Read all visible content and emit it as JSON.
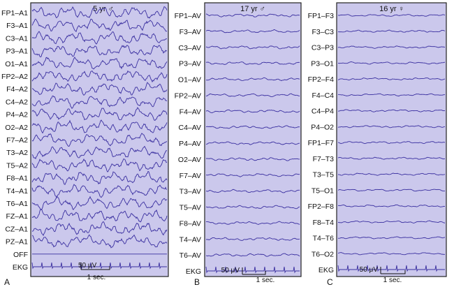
{
  "panels": [
    {
      "id": "A",
      "title": "5 yr ♂",
      "letter": "A",
      "amplitude": 1.0,
      "channels": [
        "FP1–A1",
        "F3–A1",
        "C3–A1",
        "P3–A1",
        "O1–A1",
        "FP2–A2",
        "F4–A2",
        "C4–A2",
        "P4–A2",
        "O2–A2",
        "F7–A2",
        "T3–A2",
        "T5–A2",
        "F8–A1",
        "T4–A1",
        "T6–A1",
        "FZ–A1",
        "CZ–A1",
        "PZ–A1",
        "OFF",
        "EKG"
      ],
      "scale_voltage": "50 μV",
      "scale_time": "1 sec."
    },
    {
      "id": "B",
      "title": "17 yr ♂",
      "letter": "B",
      "amplitude": 0.25,
      "channels": [
        "FP1–AV",
        "F3–AV",
        "C3–AV",
        "P3–AV",
        "O1–AV",
        "FP2–AV",
        "F4–AV",
        "C4–AV",
        "P4–AV",
        "O2–AV",
        "F7–AV",
        "T3–AV",
        "T5–AV",
        "F8–AV",
        "T4–AV",
        "T6–AV",
        "EKG"
      ],
      "scale_voltage": "50 μV",
      "scale_time": "1 sec."
    },
    {
      "id": "C",
      "title": "16 yr ♀",
      "letter": "C",
      "amplitude": 0.18,
      "channels": [
        "FP1–F3",
        "F3–C3",
        "C3–P3",
        "P3–O1",
        "FP2–F4",
        "F4–C4",
        "C4–P4",
        "P4–O2",
        "FP1–F7",
        "F7–T3",
        "T3–T5",
        "T5–O1",
        "FP2–F8",
        "F8–T4",
        "T4–T6",
        "T6–O2",
        "EKG"
      ],
      "scale_voltage": "50 μV",
      "scale_time": "1 sec."
    }
  ]
}
